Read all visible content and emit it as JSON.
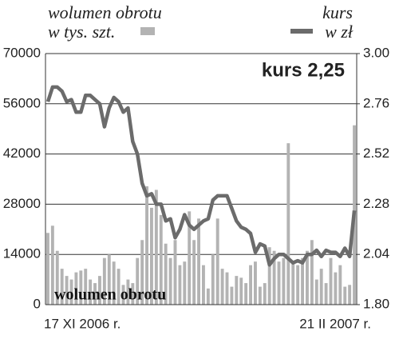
{
  "chart_data": {
    "type": "bar_line",
    "legend_left": [
      "wolumen obrotu",
      "w tys. szt."
    ],
    "legend_right": [
      "kurs",
      "w zł"
    ],
    "annotation": "kurs 2,25",
    "bar_label": "wolumen obrotu",
    "categories": [
      "17 XI 2006 r.",
      null,
      null,
      null,
      null,
      null,
      null,
      null,
      null,
      null,
      null,
      null,
      null,
      null,
      null,
      null,
      null,
      null,
      null,
      null,
      null,
      null,
      null,
      null,
      null,
      null,
      null,
      null,
      null,
      null,
      null,
      null,
      null,
      null,
      null,
      null,
      null,
      null,
      null,
      null,
      null,
      null,
      null,
      null,
      null,
      null,
      null,
      null,
      null,
      null,
      null,
      null,
      null,
      null,
      null,
      null,
      null,
      null,
      null,
      null,
      null,
      null,
      null,
      null,
      null,
      "21 II 2007 r."
    ],
    "series": [
      {
        "color": "#b3b3b3",
        "values": [
          20000,
          22000,
          15000,
          10000,
          8000,
          7000,
          9000,
          9500,
          10000,
          7000,
          6000,
          8000,
          13000,
          14000,
          12000,
          10000,
          5500,
          7000,
          6000,
          13000,
          18000,
          33000,
          27000,
          32000,
          25000,
          17000,
          13000,
          18000,
          11000,
          12000,
          26000,
          18000,
          24000,
          11000,
          4500,
          14000,
          24000,
          10000,
          9000,
          5000,
          8000,
          7500,
          6000,
          11000,
          12000,
          5000,
          6000,
          16000,
          15000,
          12000,
          13000,
          45000,
          12000,
          11000,
          13000,
          15000,
          18000,
          7000,
          10000,
          6000,
          13000,
          9000,
          11000,
          5000,
          5500,
          50000
        ]
      },
      {
        "color": "#6b6b6b",
        "axis": "y2",
        "values": [
          2.77,
          2.84,
          2.84,
          2.82,
          2.77,
          2.78,
          2.72,
          2.72,
          2.8,
          2.8,
          2.78,
          2.76,
          2.65,
          2.74,
          2.79,
          2.77,
          2.72,
          2.74,
          2.58,
          2.52,
          2.38,
          2.32,
          2.33,
          2.28,
          2.28,
          2.2,
          2.21,
          2.12,
          2.16,
          2.23,
          2.18,
          2.16,
          2.18,
          2.2,
          2.21,
          2.3,
          2.32,
          2.32,
          2.32,
          2.26,
          2.2,
          2.17,
          2.16,
          2.14,
          2.05,
          2.09,
          2.08,
          1.99,
          2.02,
          2.04,
          2.04,
          2.02,
          2.0,
          2.01,
          2.0,
          2.04,
          2.04,
          2.06,
          2.03,
          2.06,
          2.05,
          2.05,
          2.03,
          2.07,
          2.03,
          2.25
        ]
      }
    ],
    "ylim": [
      0,
      70000
    ],
    "yticks": [
      0,
      14000,
      28000,
      42000,
      56000,
      70000
    ],
    "y2lim": [
      1.8,
      3.0
    ],
    "y2ticks": [
      {
        "value": 1.8,
        "label": "1.80"
      },
      2.04,
      2.28,
      2.52,
      2.76,
      {
        "value": 3.0,
        "label": "3.00"
      }
    ],
    "grid": true
  }
}
